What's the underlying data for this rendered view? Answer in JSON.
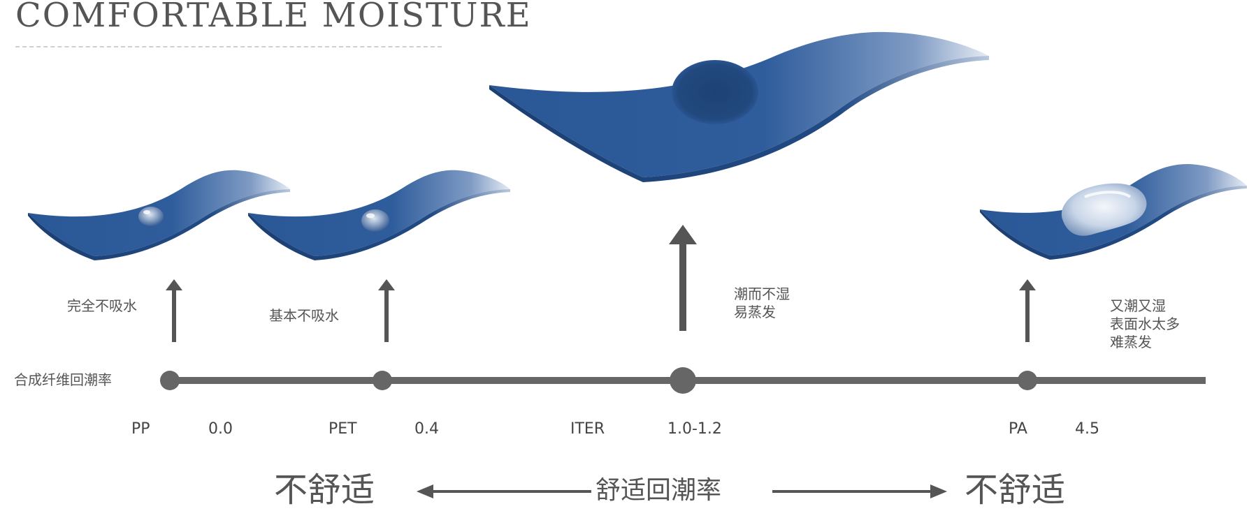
{
  "header": {
    "title": "COMFORTABLE MOISTURE"
  },
  "axis": {
    "title": "合成纤维回潮率"
  },
  "materials": [
    {
      "code": "PP",
      "value": "0.0",
      "desc": [
        "完全不吸水"
      ]
    },
    {
      "code": "PET",
      "value": "0.4",
      "desc": [
        "基本不吸水"
      ]
    },
    {
      "code": "ITER",
      "value": "1.0-1.2",
      "desc": [
        "潮而不湿",
        "易蒸发"
      ]
    },
    {
      "code": "PA",
      "value": "4.5",
      "desc": [
        "又潮又湿",
        "表面水太多",
        "难蒸发"
      ]
    }
  ],
  "bottom": {
    "left": "不舒适",
    "center": "舒适回潮率",
    "right": "不舒适"
  },
  "colors": {
    "fabric": "#2f5d9c",
    "fabric_dark": "#1f4478",
    "axis": "#666666",
    "text": "#555555"
  }
}
